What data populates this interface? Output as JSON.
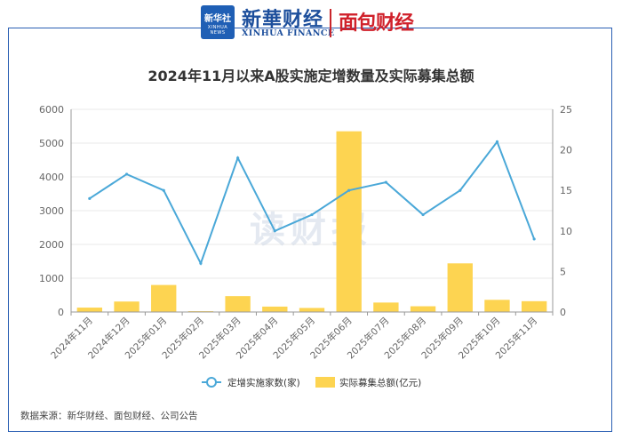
{
  "header": {
    "xinhua_badge_cn": "新华社",
    "xinhua_badge_en": "XINHUA NEWS",
    "xinhua_name": "新華财经",
    "xinhua_en": "XINHUA FINANCE",
    "mianbao_name": "面包财经"
  },
  "watermark": "读财报",
  "source": "数据来源：新华财经、面包财经、公司公告",
  "colors": {
    "line": "#4aa8d8",
    "bar": "#fdd451",
    "frame": "#2b5fb3",
    "brand_red": "#d0202a",
    "brand_blue": "#1d4f9c"
  },
  "chart_data": {
    "type": "bar+line",
    "title": "2024年11月以来A股实施定增数量及实际募集总额",
    "categories": [
      "2024年11月",
      "2024年12月",
      "2025年01月",
      "2025年02月",
      "2025年03月",
      "2025年04月",
      "2025年05月",
      "2025年06月",
      "2025年07月",
      "2025年08月",
      "2025年09月",
      "2025年10月",
      "2025年11月"
    ],
    "left_axis": {
      "ylim": [
        0,
        6000
      ],
      "ticks": [
        0,
        1000,
        2000,
        3000,
        4000,
        5000,
        6000
      ]
    },
    "right_axis": {
      "ylim": [
        0,
        25
      ],
      "ticks": [
        0,
        5,
        10,
        15,
        20,
        25
      ]
    },
    "grid": true,
    "legend": "bottom",
    "series": [
      {
        "name": "定增实施家数(家)",
        "type": "line",
        "axis": "right",
        "values": [
          14,
          17,
          15,
          6,
          19,
          10,
          12,
          15,
          16,
          12,
          15,
          21,
          9
        ]
      },
      {
        "name": "实际募集总额(亿元)",
        "type": "bar",
        "axis": "left",
        "values": [
          130,
          310,
          800,
          25,
          470,
          160,
          120,
          5350,
          280,
          170,
          1440,
          360,
          320
        ]
      }
    ]
  }
}
